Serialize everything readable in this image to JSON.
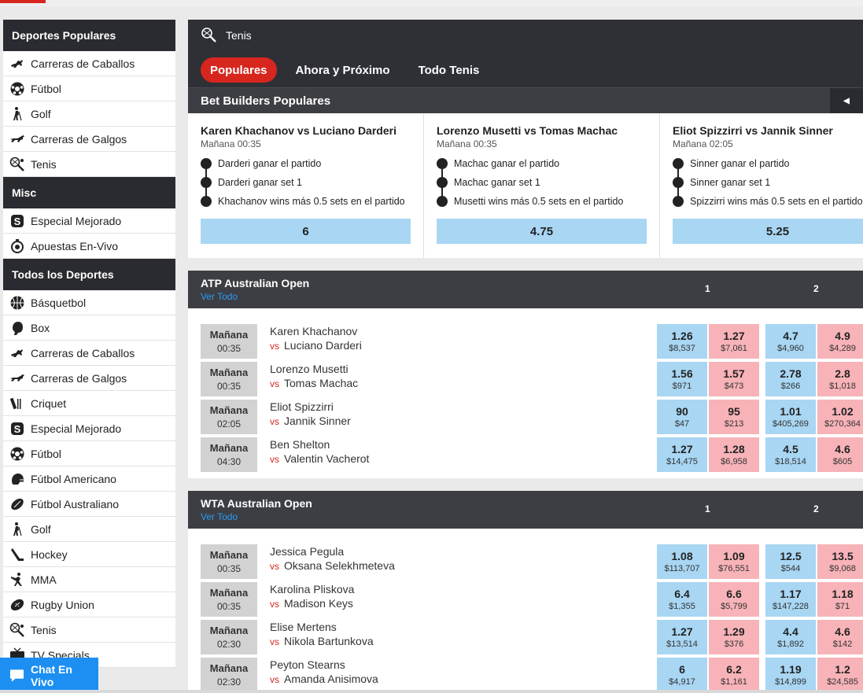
{
  "sidebar": {
    "sections": [
      {
        "title": "Deportes Populares",
        "items": [
          {
            "label": "Carreras de Caballos",
            "icon": "horse-icon"
          },
          {
            "label": "Fútbol",
            "icon": "soccer-ball-icon"
          },
          {
            "label": "Golf",
            "icon": "golfer-icon"
          },
          {
            "label": "Carreras de Galgos",
            "icon": "greyhound-icon"
          },
          {
            "label": "Tenis",
            "icon": "tennis-racket-icon"
          }
        ]
      },
      {
        "title": "Misc",
        "items": [
          {
            "label": "Especial Mejorado",
            "icon": "special-s-icon"
          },
          {
            "label": "Apuestas En-Vivo",
            "icon": "live-stopwatch-icon"
          }
        ]
      },
      {
        "title": "Todos los Deportes",
        "items": [
          {
            "label": "Básquetbol",
            "icon": "basketball-icon"
          },
          {
            "label": "Box",
            "icon": "boxing-glove-icon"
          },
          {
            "label": "Carreras de Caballos",
            "icon": "horse-icon"
          },
          {
            "label": "Carreras de Galgos",
            "icon": "greyhound-icon"
          },
          {
            "label": "Criquet",
            "icon": "cricket-icon"
          },
          {
            "label": "Especial Mejorado",
            "icon": "special-s-icon"
          },
          {
            "label": "Fútbol",
            "icon": "soccer-ball-icon"
          },
          {
            "label": "Fútbol Americano",
            "icon": "football-helmet-icon"
          },
          {
            "label": "Fútbol Australiano",
            "icon": "aussie-rules-ball-icon"
          },
          {
            "label": "Golf",
            "icon": "golfer-icon"
          },
          {
            "label": "Hockey",
            "icon": "hockey-stick-icon"
          },
          {
            "label": "MMA",
            "icon": "mma-fighter-icon"
          },
          {
            "label": "Rugby Union",
            "icon": "rugby-ball-icon"
          },
          {
            "label": "Tenis",
            "icon": "tennis-racket-icon"
          },
          {
            "label": "TV Specials",
            "icon": "tv-icon"
          }
        ]
      }
    ]
  },
  "chat": {
    "label": "Chat En Vivo",
    "icon": "chat-bubble-icon"
  },
  "header": {
    "sport": "Tenis",
    "icon": "tennis-racket-icon",
    "tabs": [
      {
        "label": "Populares",
        "active": true
      },
      {
        "label": "Ahora y Próximo",
        "active": false
      },
      {
        "label": "Todo Tenis",
        "active": false
      }
    ]
  },
  "bet_builders": {
    "title": "Bet Builders Populares",
    "cards": [
      {
        "title": "Karen Khachanov vs Luciano Darderi",
        "time": "Mañana 00:35",
        "legs": [
          "Darderi ganar el partido",
          "Darderi ganar set 1",
          "Khachanov wins más 0.5 sets en el partido"
        ],
        "odds": "6"
      },
      {
        "title": "Lorenzo Musetti vs Tomas Machac",
        "time": "Mañana 00:35",
        "legs": [
          "Machac ganar el partido",
          "Machac ganar set 1",
          "Musetti wins más 0.5 sets en el partido"
        ],
        "odds": "4.75"
      },
      {
        "title": "Eliot Spizzirri vs Jannik Sinner",
        "time": "Mañana 02:05",
        "legs": [
          "Sinner ganar el partido",
          "Sinner ganar set 1",
          "Spizzirri wins más 0.5 sets en el partido"
        ],
        "odds": "5.25"
      }
    ]
  },
  "competitions": [
    {
      "name": "ATP Australian Open",
      "link": "Ver Todo",
      "col1": "1",
      "col2": "2",
      "matches": [
        {
          "day": "Mañana",
          "time": "00:35",
          "home": "Karen Khachanov",
          "vs": "vs",
          "away": "Luciano Darderi",
          "odds": [
            {
              "p": "1.26",
              "s": "$8,537"
            },
            {
              "p": "1.27",
              "s": "$7,061"
            },
            {
              "p": "4.7",
              "s": "$4,960"
            },
            {
              "p": "4.9",
              "s": "$4,289"
            }
          ]
        },
        {
          "day": "Mañana",
          "time": "00:35",
          "home": "Lorenzo Musetti",
          "vs": "vs",
          "away": "Tomas Machac",
          "odds": [
            {
              "p": "1.56",
              "s": "$971"
            },
            {
              "p": "1.57",
              "s": "$473"
            },
            {
              "p": "2.78",
              "s": "$266"
            },
            {
              "p": "2.8",
              "s": "$1,018"
            }
          ]
        },
        {
          "day": "Mañana",
          "time": "02:05",
          "home": "Eliot Spizzirri",
          "vs": "vs",
          "away": "Jannik Sinner",
          "odds": [
            {
              "p": "90",
              "s": "$47"
            },
            {
              "p": "95",
              "s": "$213"
            },
            {
              "p": "1.01",
              "s": "$405,269"
            },
            {
              "p": "1.02",
              "s": "$270,364"
            }
          ]
        },
        {
          "day": "Mañana",
          "time": "04:30",
          "home": "Ben Shelton",
          "vs": "vs",
          "away": "Valentin Vacherot",
          "odds": [
            {
              "p": "1.27",
              "s": "$14,475"
            },
            {
              "p": "1.28",
              "s": "$6,958"
            },
            {
              "p": "4.5",
              "s": "$18,514"
            },
            {
              "p": "4.6",
              "s": "$605"
            }
          ]
        }
      ]
    },
    {
      "name": "WTA Australian Open",
      "link": "Ver Todo",
      "col1": "1",
      "col2": "2",
      "matches": [
        {
          "day": "Mañana",
          "time": "00:35",
          "home": "Jessica Pegula",
          "vs": "vs",
          "away": "Oksana Selekhmeteva",
          "odds": [
            {
              "p": "1.08",
              "s": "$113,707"
            },
            {
              "p": "1.09",
              "s": "$76,551"
            },
            {
              "p": "12.5",
              "s": "$544"
            },
            {
              "p": "13.5",
              "s": "$9,068"
            }
          ]
        },
        {
          "day": "Mañana",
          "time": "00:35",
          "home": "Karolina Pliskova",
          "vs": "vs",
          "away": "Madison Keys",
          "odds": [
            {
              "p": "6.4",
              "s": "$1,355"
            },
            {
              "p": "6.6",
              "s": "$5,799"
            },
            {
              "p": "1.17",
              "s": "$147,228"
            },
            {
              "p": "1.18",
              "s": "$71"
            }
          ]
        },
        {
          "day": "Mañana",
          "time": "02:30",
          "home": "Elise Mertens",
          "vs": "vs",
          "away": "Nikola Bartunkova",
          "odds": [
            {
              "p": "1.27",
              "s": "$13,514"
            },
            {
              "p": "1.29",
              "s": "$376"
            },
            {
              "p": "4.4",
              "s": "$1,892"
            },
            {
              "p": "4.6",
              "s": "$142"
            }
          ]
        },
        {
          "day": "Mañana",
          "time": "02:30",
          "home": "Peyton Stearns",
          "vs": "vs",
          "away": "Amanda Anisimova",
          "odds": [
            {
              "p": "6",
              "s": "$4,917"
            },
            {
              "p": "6.2",
              "s": "$1,161"
            },
            {
              "p": "1.19",
              "s": "$14,899"
            },
            {
              "p": "1.2",
              "s": "$24,585"
            }
          ]
        }
      ]
    }
  ],
  "colors": {
    "accent_red": "#d7261e",
    "back_blue": "#a8d6f3",
    "lay_pink": "#f7b3b8",
    "link_blue": "#2b9af3",
    "header_dark": "#2f3036"
  }
}
